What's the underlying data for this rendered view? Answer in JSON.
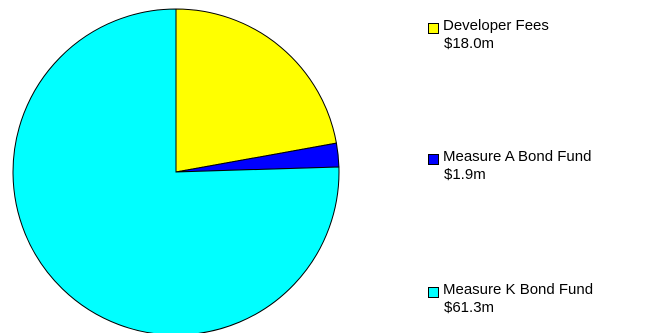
{
  "chart_data": {
    "type": "pie",
    "title": "",
    "slices": [
      {
        "label": "Developer Fees",
        "value_label": "$18.0m",
        "value": 18.0,
        "color": "#ffff00"
      },
      {
        "label": "Measure A Bond Fund",
        "value_label": "$1.9m",
        "value": 1.9,
        "color": "#0000ff"
      },
      {
        "label": "Measure K Bond Fund",
        "value_label": "$61.3m",
        "value": 61.3,
        "color": "#00ffff"
      }
    ],
    "start_angle_deg": 0,
    "direction": "clockwise",
    "legend_position": "right",
    "stroke_color": "#000000"
  }
}
